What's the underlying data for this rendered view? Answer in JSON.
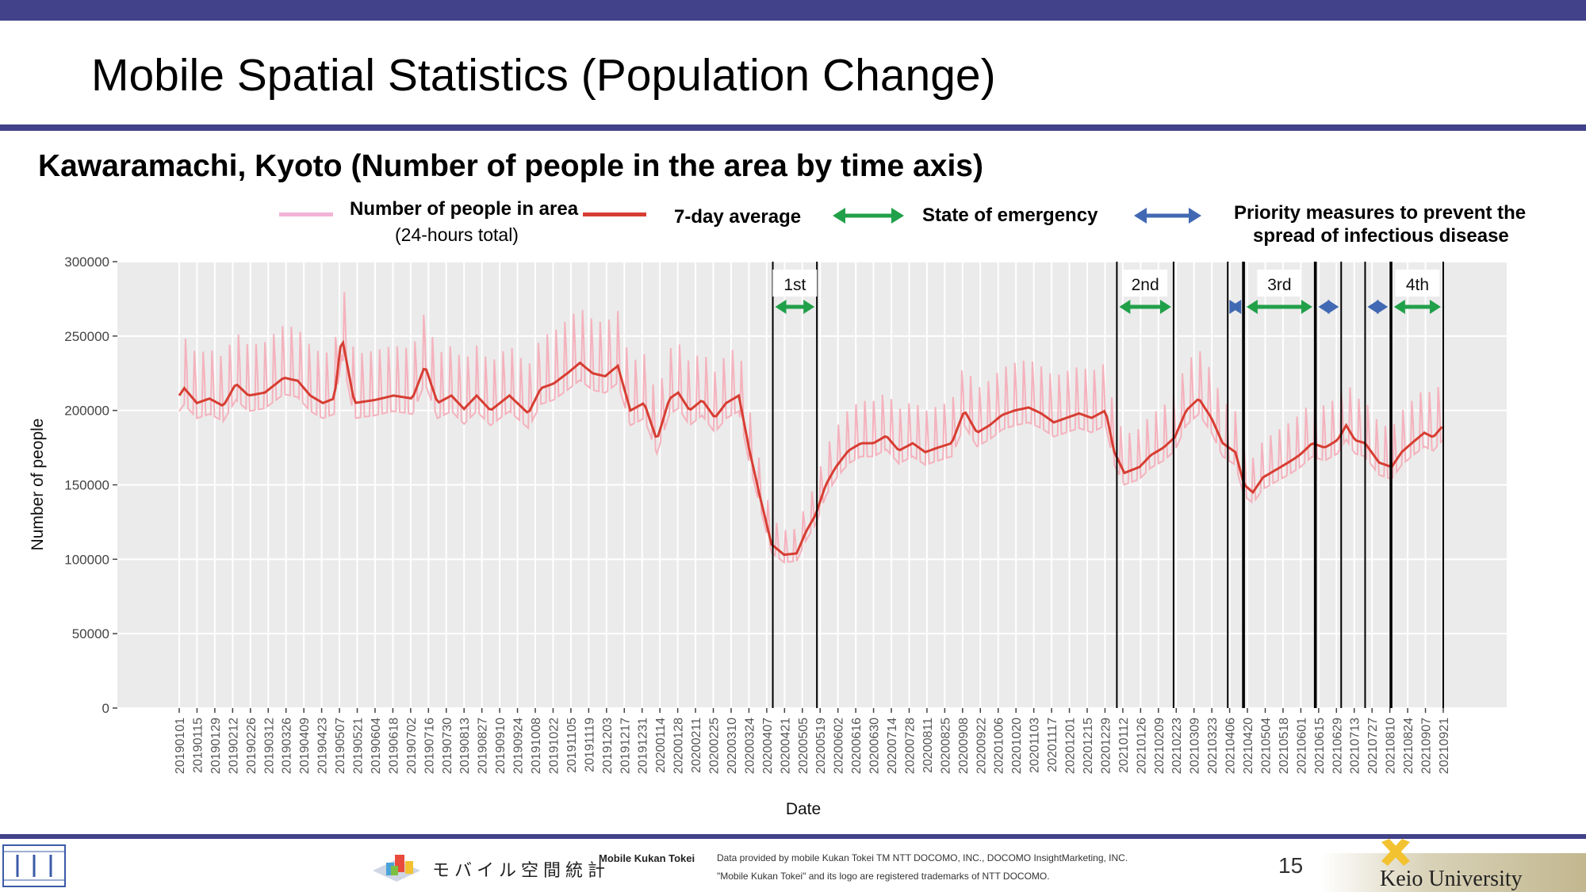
{
  "slide": {
    "title": "Mobile Spatial Statistics (Population Change)",
    "subtitle": "Kawaramachi, Kyoto (Number of people in the area by time axis)",
    "page_number": "15"
  },
  "legend": {
    "daily_label": "Number of people in area",
    "daily_sub": "(24-hours total)",
    "avg_label": "7-day average",
    "emergency_label": "State of emergency",
    "priority_label_1": "Priority measures to prevent the",
    "priority_label_2": "spread of infectious disease"
  },
  "footer": {
    "logo_text": "モバイル空間統計",
    "brand": "Mobile Kukan Tokei",
    "provider": "Data provided by mobile Kukan Tokei TM NTT DOCOMO, INC., DOCOMO InsightMarketing, INC.",
    "trademark": "\"Mobile Kukan Tokei\" and its logo are registered trademarks of NTT DOCOMO.",
    "university": "Keio University"
  },
  "colors": {
    "header_bar": "#414289",
    "daily": "#f4b2bd",
    "avg": "#d73d32",
    "emergency": "#21a04a",
    "priority": "#4169b3",
    "plot_bg": "#ebebeb"
  },
  "chart_data": {
    "type": "line",
    "xlabel": "Date",
    "ylabel": "Number of people",
    "ylim": [
      0,
      300000
    ],
    "y_ticks": [
      0,
      50000,
      100000,
      150000,
      200000,
      250000,
      300000
    ],
    "x_start": "2019-01-01",
    "x_end": "2021-09-30",
    "x_tick_labels": [
      "20190101",
      "20190115",
      "20190129",
      "20190212",
      "20190226",
      "20190312",
      "20190326",
      "20190409",
      "20190423",
      "20190507",
      "20190521",
      "20190604",
      "20190618",
      "20190702",
      "20190716",
      "20190730",
      "20190813",
      "20190827",
      "20190910",
      "20190924",
      "20191008",
      "20191022",
      "20191105",
      "20191119",
      "20191203",
      "20191217",
      "20191231",
      "20200114",
      "20200128",
      "20200211",
      "20200225",
      "20200310",
      "20200324",
      "20200407",
      "20200421",
      "20200505",
      "20200519",
      "20200602",
      "20200616",
      "20200630",
      "20200714",
      "20200728",
      "20200811",
      "20200825",
      "20200908",
      "20200922",
      "20201006",
      "20201020",
      "20201103",
      "20201117",
      "20201201",
      "20201215",
      "20201229",
      "20210112",
      "20210126",
      "20210209",
      "20210223",
      "20210309",
      "20210323",
      "20210406",
      "20210420",
      "20210504",
      "20210518",
      "20210601",
      "20210615",
      "20210629",
      "20210713",
      "20210727",
      "20210810",
      "20210824",
      "20210907",
      "20210921"
    ],
    "series": [
      {
        "name": "7-day average",
        "x": [
          "2019-01-01",
          "2019-01-05",
          "2019-01-15",
          "2019-01-25",
          "2019-02-05",
          "2019-02-15",
          "2019-02-25",
          "2019-03-10",
          "2019-03-25",
          "2019-04-05",
          "2019-04-15",
          "2019-04-25",
          "2019-05-04",
          "2019-05-10",
          "2019-05-20",
          "2019-06-05",
          "2019-06-20",
          "2019-07-05",
          "2019-07-15",
          "2019-07-25",
          "2019-08-05",
          "2019-08-15",
          "2019-08-25",
          "2019-09-05",
          "2019-09-20",
          "2019-10-05",
          "2019-10-15",
          "2019-10-25",
          "2019-11-05",
          "2019-11-15",
          "2019-11-25",
          "2019-12-05",
          "2019-12-15",
          "2019-12-25",
          "2020-01-05",
          "2020-01-15",
          "2020-01-25",
          "2020-02-01",
          "2020-02-10",
          "2020-02-20",
          "2020-03-01",
          "2020-03-10",
          "2020-03-20",
          "2020-03-28",
          "2020-04-05",
          "2020-04-15",
          "2020-04-25",
          "2020-05-05",
          "2020-05-12",
          "2020-05-20",
          "2020-05-28",
          "2020-06-05",
          "2020-06-15",
          "2020-06-25",
          "2020-07-05",
          "2020-07-15",
          "2020-07-25",
          "2020-08-05",
          "2020-08-15",
          "2020-08-25",
          "2020-09-05",
          "2020-09-15",
          "2020-09-25",
          "2020-10-05",
          "2020-10-15",
          "2020-10-25",
          "2020-11-05",
          "2020-11-15",
          "2020-11-25",
          "2020-12-05",
          "2020-12-15",
          "2020-12-25",
          "2021-01-05",
          "2021-01-12",
          "2021-01-20",
          "2021-02-01",
          "2021-02-10",
          "2021-02-20",
          "2021-03-01",
          "2021-03-10",
          "2021-03-20",
          "2021-03-30",
          "2021-04-08",
          "2021-04-18",
          "2021-04-25",
          "2021-05-02",
          "2021-05-10",
          "2021-05-20",
          "2021-05-30",
          "2021-06-08",
          "2021-06-18",
          "2021-06-28",
          "2021-07-08",
          "2021-07-15",
          "2021-07-22",
          "2021-07-30",
          "2021-08-10",
          "2021-08-20",
          "2021-08-28",
          "2021-09-05",
          "2021-09-15",
          "2021-09-22",
          "2021-09-30"
        ],
        "values": [
          210000,
          215000,
          205000,
          208000,
          203000,
          218000,
          210000,
          212000,
          222000,
          220000,
          210000,
          205000,
          208000,
          250000,
          205000,
          207000,
          210000,
          208000,
          230000,
          205000,
          210000,
          201000,
          210000,
          200000,
          210000,
          198000,
          215000,
          218000,
          225000,
          232000,
          225000,
          223000,
          230000,
          200000,
          205000,
          180000,
          208000,
          212000,
          200000,
          207000,
          195000,
          205000,
          210000,
          175000,
          145000,
          110000,
          103000,
          104000,
          118000,
          130000,
          150000,
          162000,
          173000,
          178000,
          178000,
          183000,
          173000,
          178000,
          172000,
          175000,
          178000,
          200000,
          185000,
          190000,
          197000,
          200000,
          202000,
          198000,
          192000,
          195000,
          198000,
          195000,
          200000,
          172000,
          158000,
          162000,
          170000,
          175000,
          182000,
          200000,
          208000,
          195000,
          178000,
          172000,
          150000,
          145000,
          155000,
          160000,
          165000,
          170000,
          178000,
          175000,
          180000,
          190000,
          180000,
          178000,
          165000,
          162000,
          172000,
          178000,
          185000,
          182000,
          190000
        ]
      }
    ],
    "emergency_periods": [
      {
        "label": "1st",
        "start": "2020-04-16",
        "end": "2020-05-21"
      },
      {
        "label": "2nd",
        "start": "2021-01-14",
        "end": "2021-02-28"
      },
      {
        "label": "3rd",
        "start": "2021-04-25",
        "end": "2021-06-20"
      },
      {
        "label": "4th",
        "start": "2021-08-20",
        "end": "2021-09-30"
      }
    ],
    "priority_periods": [
      {
        "start": "2021-04-12",
        "end": "2021-04-24"
      },
      {
        "start": "2021-06-21",
        "end": "2021-07-11"
      },
      {
        "start": "2021-07-30",
        "end": "2021-08-19"
      }
    ]
  }
}
